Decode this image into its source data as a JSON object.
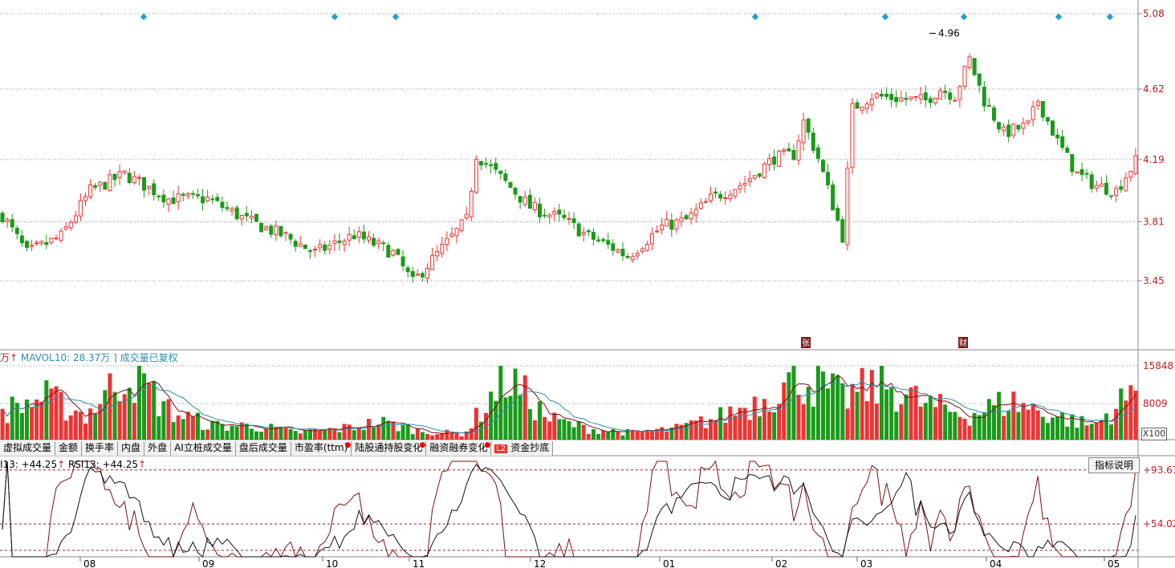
{
  "price_axis": {
    "ticks": [
      "5.08",
      "4.62",
      "4.19",
      "3.81",
      "3.45"
    ]
  },
  "price_annotation": "4.96",
  "event_markers": [
    "张",
    "财"
  ],
  "volume_legend": {
    "prefix": "万",
    "mavol": "MAVOL10: 28.37万",
    "status": "成交量已复权"
  },
  "volume_axis": {
    "ticks": [
      "15848",
      "8009"
    ],
    "unit": "X100"
  },
  "tabs": [
    "虚拟成交量",
    "金额",
    "换手率",
    "内盘",
    "外盘",
    "AI立桩成交量",
    "盘后成交量",
    "市盈率(ttm)",
    "陆股通持股变化",
    "融资融券变化",
    "资金抄底"
  ],
  "tab_badge": "L2",
  "help_button": "指标说明",
  "rsi_legend": {
    "a": "I13: +44.25",
    "b": "RSI13: +44.25"
  },
  "rsi_axis": {
    "ticks": [
      "+93.67",
      "+54.02"
    ]
  },
  "colors": {
    "up": "#ee3333",
    "down": "#1a9a1a",
    "grid": "#999999",
    "axis_text": "#c02020",
    "ma_dark": "#7a1010",
    "ma_blue": "#2a8fb0"
  },
  "chart_data": {
    "type": "candlestick",
    "x_labels": [
      "08",
      "09",
      "10",
      "11",
      "12",
      "01",
      "02",
      "03",
      "04",
      "05"
    ],
    "price_range": [
      3.2,
      5.12
    ],
    "close_path": [
      [
        0,
        3.85
      ],
      [
        5,
        3.62
      ],
      [
        12,
        3.72
      ],
      [
        18,
        4.0
      ],
      [
        25,
        4.1
      ],
      [
        34,
        3.95
      ],
      [
        42,
        3.95
      ],
      [
        50,
        3.82
      ],
      [
        58,
        3.72
      ],
      [
        64,
        3.62
      ],
      [
        72,
        3.73
      ],
      [
        80,
        3.62
      ],
      [
        84,
        3.44
      ],
      [
        88,
        3.58
      ],
      [
        95,
        3.82
      ],
      [
        97,
        4.22
      ],
      [
        102,
        4.08
      ],
      [
        108,
        3.9
      ],
      [
        115,
        3.82
      ],
      [
        120,
        3.72
      ],
      [
        125,
        3.65
      ],
      [
        128,
        3.6
      ],
      [
        135,
        3.78
      ],
      [
        140,
        3.82
      ],
      [
        145,
        3.95
      ],
      [
        152,
        4.05
      ],
      [
        158,
        4.2
      ],
      [
        162,
        4.22
      ],
      [
        164,
        4.42
      ],
      [
        167,
        4.2
      ],
      [
        172,
        3.72
      ],
      [
        174,
        4.5
      ],
      [
        178,
        4.58
      ],
      [
        184,
        4.56
      ],
      [
        189,
        4.55
      ],
      [
        192,
        4.62
      ],
      [
        195,
        4.58
      ],
      [
        198,
        4.8
      ],
      [
        201,
        4.55
      ],
      [
        205,
        4.35
      ],
      [
        210,
        4.4
      ],
      [
        212,
        4.55
      ],
      [
        216,
        4.3
      ],
      [
        220,
        4.1
      ],
      [
        224,
        4.03
      ],
      [
        228,
        4.0
      ],
      [
        232,
        4.18
      ]
    ],
    "volume_levels": [
      0.4,
      0.6,
      0.35,
      1.0,
      0.4,
      0.2,
      0.2,
      0.1,
      0.15,
      0.25,
      0.12,
      0.08,
      0.9,
      0.3,
      0.15,
      0.1,
      0.15,
      0.3,
      0.55,
      0.9,
      0.6,
      0.8,
      0.5,
      0.35,
      0.55,
      0.35,
      0.2,
      0.7
    ],
    "rsi_range": [
      30,
      100
    ],
    "rsi_levels": [
      93.67,
      54.02
    ]
  }
}
